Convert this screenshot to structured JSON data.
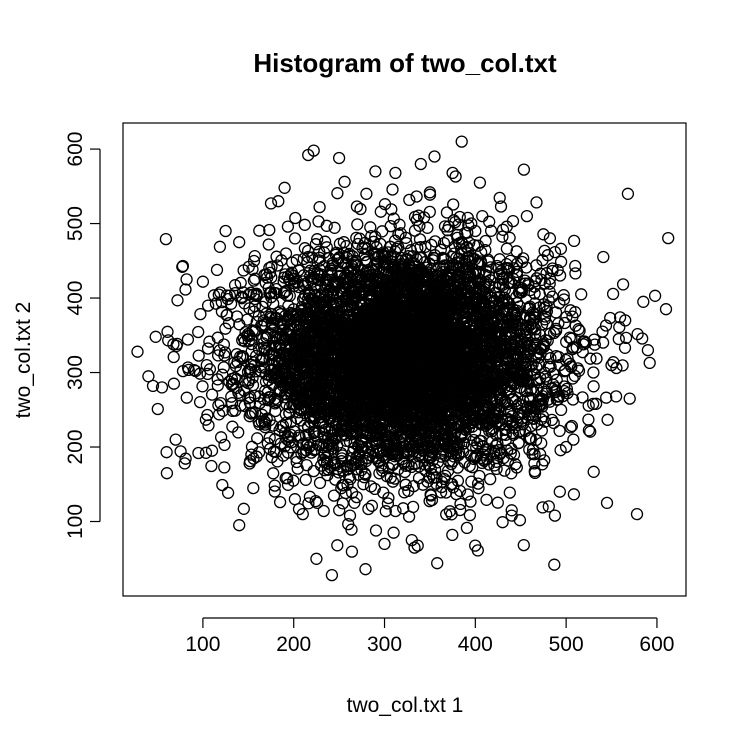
{
  "chart_data": {
    "type": "scatter",
    "title": "Histogram of two_col.txt",
    "xlabel": "two_col.txt 1",
    "ylabel": "two_col.txt 2",
    "xlim": [
      12,
      632
    ],
    "ylim": [
      0,
      635
    ],
    "xticks": [
      100,
      200,
      300,
      400,
      500,
      600
    ],
    "yticks": [
      100,
      200,
      300,
      400,
      500,
      600
    ],
    "grid": false,
    "legend": "none",
    "marker": "open-circle",
    "distribution": {
      "x_mean": 320,
      "x_sd": 85,
      "y_mean": 320,
      "y_sd": 80,
      "n": 6000
    },
    "outliers": [
      {
        "x": 28,
        "y": 328
      },
      {
        "x": 40,
        "y": 295
      },
      {
        "x": 45,
        "y": 282
      },
      {
        "x": 48,
        "y": 348
      },
      {
        "x": 55,
        "y": 280
      },
      {
        "x": 60,
        "y": 193
      },
      {
        "x": 68,
        "y": 285
      },
      {
        "x": 70,
        "y": 210
      },
      {
        "x": 72,
        "y": 397
      },
      {
        "x": 78,
        "y": 443
      },
      {
        "x": 80,
        "y": 178
      },
      {
        "x": 82,
        "y": 425
      },
      {
        "x": 92,
        "y": 302
      },
      {
        "x": 95,
        "y": 192
      },
      {
        "x": 100,
        "y": 422
      },
      {
        "x": 105,
        "y": 243
      },
      {
        "x": 110,
        "y": 195
      },
      {
        "x": 120,
        "y": 213
      },
      {
        "x": 125,
        "y": 490
      },
      {
        "x": 140,
        "y": 95
      },
      {
        "x": 140,
        "y": 475
      },
      {
        "x": 145,
        "y": 117
      },
      {
        "x": 175,
        "y": 527
      },
      {
        "x": 183,
        "y": 530
      },
      {
        "x": 190,
        "y": 548
      },
      {
        "x": 185,
        "y": 126
      },
      {
        "x": 210,
        "y": 110
      },
      {
        "x": 216,
        "y": 592
      },
      {
        "x": 222,
        "y": 598
      },
      {
        "x": 225,
        "y": 50
      },
      {
        "x": 242,
        "y": 28
      },
      {
        "x": 248,
        "y": 68
      },
      {
        "x": 250,
        "y": 588
      },
      {
        "x": 256,
        "y": 556
      },
      {
        "x": 262,
        "y": 108
      },
      {
        "x": 280,
        "y": 540
      },
      {
        "x": 290,
        "y": 570
      },
      {
        "x": 300,
        "y": 70
      },
      {
        "x": 310,
        "y": 85
      },
      {
        "x": 312,
        "y": 568
      },
      {
        "x": 330,
        "y": 75
      },
      {
        "x": 333,
        "y": 65
      },
      {
        "x": 340,
        "y": 580
      },
      {
        "x": 350,
        "y": 542
      },
      {
        "x": 355,
        "y": 590
      },
      {
        "x": 358,
        "y": 44
      },
      {
        "x": 375,
        "y": 568
      },
      {
        "x": 385,
        "y": 610
      },
      {
        "x": 405,
        "y": 555
      },
      {
        "x": 440,
        "y": 115
      },
      {
        "x": 440,
        "y": 108
      },
      {
        "x": 465,
        "y": 178
      },
      {
        "x": 487,
        "y": 42
      },
      {
        "x": 493,
        "y": 140
      },
      {
        "x": 500,
        "y": 200
      },
      {
        "x": 508,
        "y": 210
      },
      {
        "x": 510,
        "y": 443
      },
      {
        "x": 530,
        "y": 300
      },
      {
        "x": 533,
        "y": 258
      },
      {
        "x": 540,
        "y": 355
      },
      {
        "x": 545,
        "y": 125
      },
      {
        "x": 550,
        "y": 310
      },
      {
        "x": 555,
        "y": 268
      },
      {
        "x": 558,
        "y": 345
      },
      {
        "x": 565,
        "y": 370
      },
      {
        "x": 568,
        "y": 540
      },
      {
        "x": 570,
        "y": 265
      },
      {
        "x": 578,
        "y": 110
      },
      {
        "x": 585,
        "y": 395
      },
      {
        "x": 590,
        "y": 330
      },
      {
        "x": 592,
        "y": 313
      },
      {
        "x": 598,
        "y": 403
      },
      {
        "x": 610,
        "y": 385
      }
    ]
  }
}
